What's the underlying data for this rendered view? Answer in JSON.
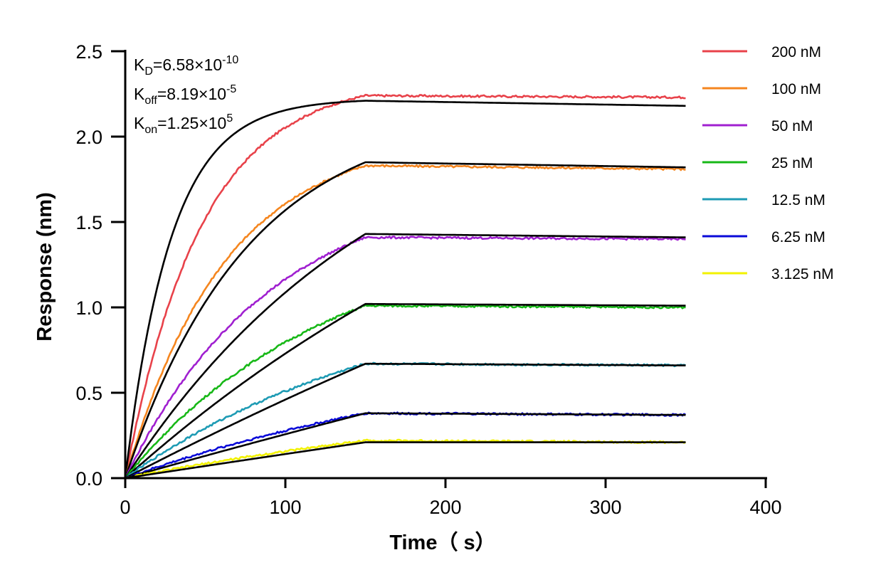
{
  "chart_data": {
    "type": "line",
    "xlabel": "Time（ s）",
    "ylabel": "Response (nm)",
    "xlim": [
      0,
      400
    ],
    "ylim": [
      0,
      2.5
    ],
    "x_ticks": [
      "0",
      "100",
      "200",
      "300",
      "400"
    ],
    "y_ticks": [
      "0.0",
      "0.5",
      "1.0",
      "1.5",
      "2.0",
      "2.5"
    ],
    "grid": false,
    "legend_position": "right",
    "association_end_time": 150,
    "end_time": 350,
    "annotations": {
      "kd": {
        "main": "K",
        "sub": "D",
        "eq": "=6.58×10",
        "exp": "-10"
      },
      "koff": {
        "main": "K",
        "sub": "off",
        "eq": "=8.19×10",
        "exp": "-5"
      },
      "kon": {
        "main": "K",
        "sub": "on",
        "eq": "=1.25×10",
        "exp": "5"
      }
    },
    "fit_color": "#000000",
    "series": [
      {
        "name": "200 nM",
        "color": "#e8424a",
        "peak": 2.24,
        "end": 2.23,
        "fit_peak": 2.21,
        "fit_end": 2.18,
        "data_k": 0.021,
        "fit_k": 0.035
      },
      {
        "name": "100 nM",
        "color": "#f5861f",
        "peak": 1.83,
        "end": 1.81,
        "fit_peak": 1.85,
        "fit_end": 1.82,
        "data_k": 0.016,
        "fit_k": 0.013
      },
      {
        "name": "50 nM",
        "color": "#a020d0",
        "peak": 1.41,
        "end": 1.4,
        "fit_peak": 1.43,
        "fit_end": 1.41,
        "data_k": 0.011,
        "fit_k": 0.006
      },
      {
        "name": "25 nM",
        "color": "#17b817",
        "peak": 1.01,
        "end": 1.0,
        "fit_peak": 1.02,
        "fit_end": 1.01,
        "data_k": 0.008,
        "fit_k": 0.003
      },
      {
        "name": "12.5 nM",
        "color": "#1e9bb4",
        "peak": 0.67,
        "end": 0.66,
        "fit_peak": 0.67,
        "fit_end": 0.66,
        "data_k": 0.006,
        "fit_k": 0.0012
      },
      {
        "name": "6.25 nM",
        "color": "#0a0ad8",
        "peak": 0.38,
        "end": 0.37,
        "fit_peak": 0.38,
        "fit_end": 0.37,
        "data_k": 0.004,
        "fit_k": 0.0006
      },
      {
        "name": "3.125 nM",
        "color": "#f2f200",
        "peak": 0.22,
        "end": 0.21,
        "fit_peak": 0.21,
        "fit_end": 0.21,
        "data_k": 0.003,
        "fit_k": 0.0003
      }
    ]
  }
}
